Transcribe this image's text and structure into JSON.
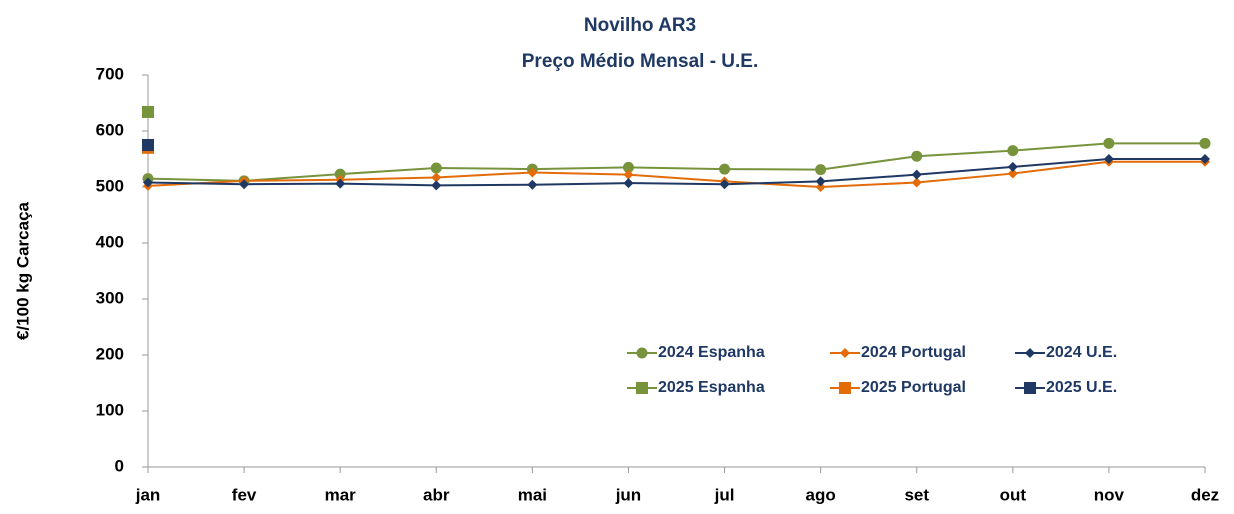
{
  "chart_data": {
    "type": "line",
    "title": "Novilho AR3",
    "subtitle": "Preço Médio Mensal - U.E.",
    "y_label": "€/100 kg  Carcaça",
    "categories": [
      "jan",
      "fev",
      "mar",
      "abr",
      "mai",
      "jun",
      "jul",
      "ago",
      "set",
      "out",
      "nov",
      "dez"
    ],
    "ylim": [
      0,
      700
    ],
    "yticks": [
      0,
      100,
      200,
      300,
      400,
      500,
      600,
      700
    ],
    "grid": false,
    "series": [
      {
        "name": "2024 Espanha",
        "color": "#77933c",
        "marker": "circle",
        "values": [
          515,
          511,
          523,
          534,
          532,
          535,
          532,
          531,
          555,
          565,
          578,
          578
        ]
      },
      {
        "name": "2024 Portugal",
        "color": "#e36c09",
        "marker": "diamond",
        "values": [
          502,
          511,
          513,
          517,
          526,
          522,
          510,
          500,
          508,
          524,
          545,
          545
        ]
      },
      {
        "name": "2024 U.E.",
        "color": "#1f3864",
        "marker": "diamond",
        "values": [
          508,
          505,
          506,
          503,
          504,
          507,
          505,
          510,
          522,
          536,
          550,
          550
        ]
      },
      {
        "name": "2025 Espanha",
        "color": "#77933c",
        "marker": "square",
        "values": [
          634,
          null,
          null,
          null,
          null,
          null,
          null,
          null,
          null,
          null,
          null,
          null
        ]
      },
      {
        "name": "2025 Portugal",
        "color": "#e36c09",
        "marker": "square",
        "values": [
          570,
          null,
          null,
          null,
          null,
          null,
          null,
          null,
          null,
          null,
          null,
          null
        ]
      },
      {
        "name": "2025 U.E.",
        "color": "#1f3864",
        "marker": "square",
        "values": [
          575,
          null,
          null,
          null,
          null,
          null,
          null,
          null,
          null,
          null,
          null,
          null
        ]
      }
    ]
  }
}
